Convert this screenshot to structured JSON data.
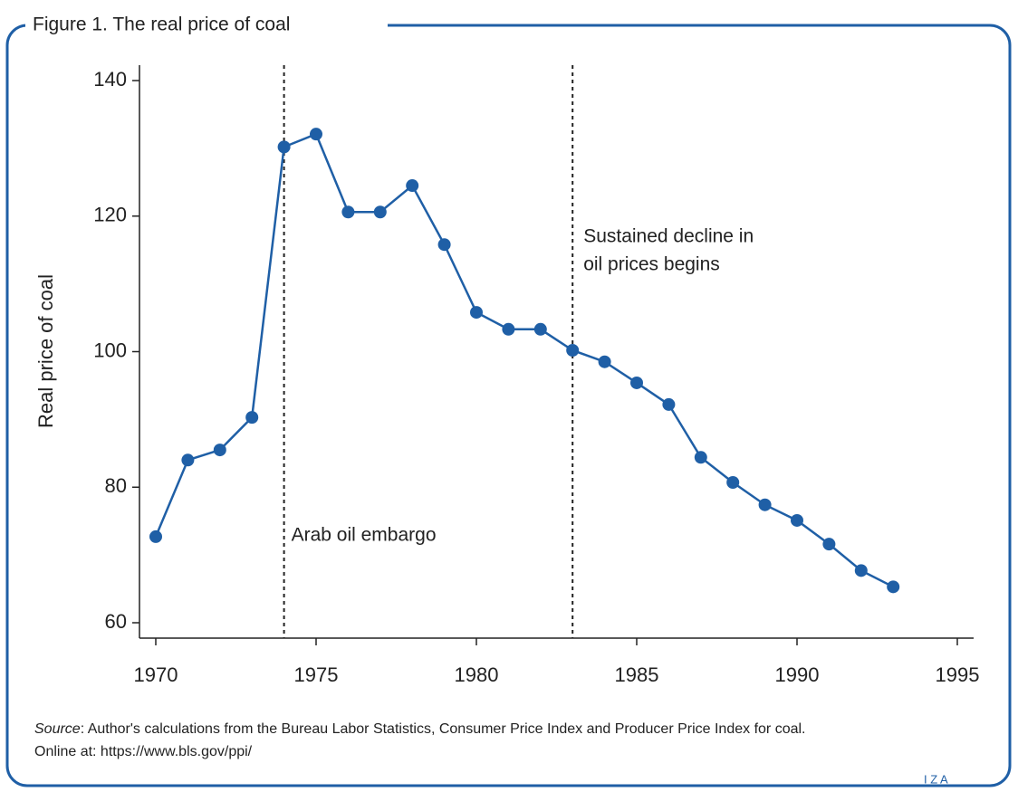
{
  "chart_data": {
    "type": "line",
    "title": "Figure 1. The real price of coal",
    "y_label": "Real price of coal",
    "x": [
      1970,
      1971,
      1972,
      1973,
      1974,
      1975,
      1976,
      1977,
      1978,
      1979,
      1980,
      1981,
      1982,
      1983,
      1984,
      1985,
      1986,
      1987,
      1988,
      1989,
      1990,
      1991,
      1992,
      1993
    ],
    "series": [
      {
        "name": "Real price of coal",
        "color": "#1f5fa6",
        "values": [
          72.7,
          84.0,
          85.5,
          90.3,
          130.2,
          132.1,
          120.6,
          120.6,
          124.5,
          115.8,
          105.8,
          103.3,
          103.3,
          100.2,
          98.5,
          95.4,
          92.2,
          84.4,
          80.7,
          77.4,
          75.1,
          71.6,
          67.7,
          65.3
        ]
      }
    ],
    "xlim": [
      1970,
      1995
    ],
    "xticks": [
      1970,
      1975,
      1980,
      1985,
      1990,
      1995
    ],
    "ylim": [
      60,
      140
    ],
    "yticks": [
      60,
      80,
      100,
      120,
      140
    ],
    "annotations": [
      {
        "x": 1974,
        "text": [
          "Arab oil embargo"
        ]
      },
      {
        "x": 1983,
        "text": [
          "Sustained decline in",
          "oil prices begins"
        ]
      }
    ],
    "source": [
      "Source",
      ": Author's calculations from the Bureau Labor Statistics, Consumer Price Index and Producer Price Index for coal.",
      "Online at: https://www.bls.gov/ppi/"
    ],
    "logo": "I Z A"
  }
}
